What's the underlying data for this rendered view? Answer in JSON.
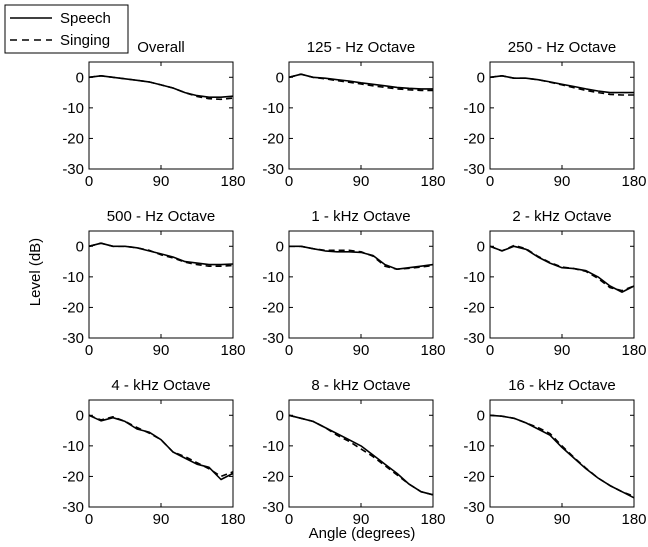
{
  "figure": {
    "xlabel": "Angle (degrees)",
    "ylabel": "Level (dB)",
    "legend": {
      "placement": "top-left",
      "entries": [
        {
          "label": "Speech",
          "style": "solid"
        },
        {
          "label": "Singing",
          "style": "dashed"
        }
      ]
    },
    "line_color": "#000000"
  },
  "chart_data": [
    {
      "type": "line",
      "title": "Overall",
      "xlim": [
        0,
        180
      ],
      "ylim": [
        -30,
        5
      ],
      "xticks": [
        0,
        90,
        180
      ],
      "yticks": [
        0,
        -10,
        -20,
        -30
      ],
      "x": [
        0,
        15,
        30,
        45,
        60,
        75,
        90,
        105,
        120,
        135,
        150,
        165,
        180
      ],
      "series": [
        {
          "name": "Speech",
          "values": [
            0,
            0.5,
            0,
            -0.5,
            -1,
            -1.5,
            -2.5,
            -3.5,
            -5,
            -6,
            -6.5,
            -6.5,
            -6.2
          ]
        },
        {
          "name": "Singing",
          "values": [
            0,
            0.5,
            0,
            -0.5,
            -1,
            -1.5,
            -2.5,
            -3.5,
            -5,
            -6.3,
            -7,
            -7.2,
            -6.8
          ]
        }
      ]
    },
    {
      "type": "line",
      "title": "125 - Hz  Octave",
      "xlim": [
        0,
        180
      ],
      "ylim": [
        -30,
        5
      ],
      "xticks": [
        0,
        90,
        180
      ],
      "yticks": [
        0,
        -10,
        -20,
        -30
      ],
      "x": [
        0,
        15,
        30,
        45,
        60,
        75,
        90,
        105,
        120,
        135,
        150,
        165,
        180
      ],
      "series": [
        {
          "name": "Speech",
          "values": [
            0,
            1,
            0,
            -0.3,
            -0.8,
            -1.2,
            -1.8,
            -2.3,
            -2.8,
            -3.3,
            -3.6,
            -3.8,
            -3.8
          ]
        },
        {
          "name": "Singing",
          "values": [
            0,
            1,
            0,
            -0.5,
            -1.1,
            -1.6,
            -2.2,
            -2.8,
            -3.3,
            -3.8,
            -4.1,
            -4.3,
            -4.3
          ]
        }
      ]
    },
    {
      "type": "line",
      "title": "250 - Hz  Octave",
      "xlim": [
        0,
        180
      ],
      "ylim": [
        -30,
        5
      ],
      "xticks": [
        0,
        90,
        180
      ],
      "yticks": [
        0,
        -10,
        -20,
        -30
      ],
      "x": [
        0,
        15,
        30,
        45,
        60,
        75,
        90,
        105,
        120,
        135,
        150,
        165,
        180
      ],
      "series": [
        {
          "name": "Speech",
          "values": [
            0,
            0.5,
            -0.3,
            -0.3,
            -0.8,
            -1.5,
            -2.3,
            -3,
            -3.8,
            -4.5,
            -5,
            -5,
            -5
          ]
        },
        {
          "name": "Singing",
          "values": [
            0,
            0.5,
            -0.3,
            -0.3,
            -0.8,
            -1.6,
            -2.5,
            -3.4,
            -4.3,
            -5,
            -5.6,
            -5.8,
            -5.8
          ]
        }
      ]
    },
    {
      "type": "line",
      "title": "500 - Hz  Octave",
      "xlim": [
        0,
        180
      ],
      "ylim": [
        -30,
        5
      ],
      "xticks": [
        0,
        90,
        180
      ],
      "yticks": [
        0,
        -10,
        -20,
        -30
      ],
      "x": [
        0,
        15,
        30,
        45,
        60,
        75,
        90,
        105,
        120,
        135,
        150,
        165,
        180
      ],
      "series": [
        {
          "name": "Speech",
          "values": [
            0,
            1,
            0,
            0,
            -0.5,
            -1.5,
            -2.5,
            -3.5,
            -5,
            -5.5,
            -6,
            -6,
            -5.8
          ]
        },
        {
          "name": "Singing",
          "values": [
            0,
            1,
            0,
            0,
            -0.5,
            -1.3,
            -2.8,
            -3.8,
            -5.2,
            -6,
            -6.5,
            -6.5,
            -6.3
          ]
        }
      ]
    },
    {
      "type": "line",
      "title": "1 - kHz  Octave",
      "xlim": [
        0,
        180
      ],
      "ylim": [
        -30,
        5
      ],
      "xticks": [
        0,
        90,
        180
      ],
      "yticks": [
        0,
        -10,
        -20,
        -30
      ],
      "x": [
        0,
        15,
        30,
        45,
        60,
        75,
        90,
        105,
        120,
        135,
        150,
        165,
        180
      ],
      "series": [
        {
          "name": "Speech",
          "values": [
            0,
            0,
            -0.8,
            -1.5,
            -1.8,
            -1.8,
            -2,
            -3,
            -6,
            -7.5,
            -7,
            -6.5,
            -6
          ]
        },
        {
          "name": "Singing",
          "values": [
            0,
            0,
            -0.8,
            -1.3,
            -1.3,
            -1.3,
            -1.8,
            -3.2,
            -6.5,
            -7.5,
            -7.2,
            -6.8,
            -6.3
          ]
        }
      ]
    },
    {
      "type": "line",
      "title": "2 - kHz  Octave",
      "xlim": [
        0,
        180
      ],
      "ylim": [
        -30,
        5
      ],
      "xticks": [
        0,
        90,
        180
      ],
      "yticks": [
        0,
        -10,
        -20,
        -30
      ],
      "x": [
        0,
        15,
        30,
        45,
        60,
        75,
        90,
        105,
        120,
        135,
        150,
        165,
        180
      ],
      "series": [
        {
          "name": "Speech",
          "values": [
            0,
            -1.5,
            0,
            -1,
            -3.5,
            -5.5,
            -7,
            -7.3,
            -8,
            -10,
            -13,
            -15,
            -13
          ]
        },
        {
          "name": "Singing",
          "values": [
            0,
            -1.5,
            0.3,
            -0.8,
            -3.3,
            -5.3,
            -6.8,
            -7.3,
            -8.2,
            -10.5,
            -13.5,
            -14.5,
            -13
          ]
        }
      ]
    },
    {
      "type": "line",
      "title": "4 - kHz  Octave",
      "xlim": [
        0,
        180
      ],
      "ylim": [
        -30,
        5
      ],
      "xticks": [
        0,
        90,
        180
      ],
      "yticks": [
        0,
        -10,
        -20,
        -30
      ],
      "x": [
        0,
        15,
        30,
        45,
        60,
        75,
        90,
        105,
        120,
        135,
        150,
        165,
        180
      ],
      "series": [
        {
          "name": "Speech",
          "values": [
            0,
            -1.8,
            -0.8,
            -2,
            -4.5,
            -5.5,
            -8,
            -12,
            -14,
            -16,
            -17,
            -21,
            -19
          ]
        },
        {
          "name": "Singing",
          "values": [
            0,
            -1.5,
            -0.5,
            -2,
            -4,
            -5.8,
            -8,
            -12,
            -13.5,
            -15.5,
            -17.5,
            -20,
            -18.5
          ]
        }
      ]
    },
    {
      "type": "line",
      "title": "8 - kHz  Octave",
      "xlim": [
        0,
        180
      ],
      "ylim": [
        -30,
        5
      ],
      "xticks": [
        0,
        90,
        180
      ],
      "yticks": [
        0,
        -10,
        -20,
        -30
      ],
      "x": [
        0,
        15,
        30,
        45,
        60,
        75,
        90,
        105,
        120,
        135,
        150,
        165,
        180
      ],
      "series": [
        {
          "name": "Speech",
          "values": [
            0,
            -1,
            -2,
            -4,
            -6,
            -8,
            -10,
            -13,
            -16,
            -19,
            -22.5,
            -25,
            -26
          ]
        },
        {
          "name": "Singing",
          "values": [
            0,
            -1,
            -2,
            -4,
            -6.5,
            -8.5,
            -11,
            -13.5,
            -16.5,
            -19.5,
            -22.5,
            -25,
            -26
          ]
        }
      ]
    },
    {
      "type": "line",
      "title": "16 - kHz  Octave",
      "xlim": [
        0,
        180
      ],
      "ylim": [
        -30,
        5
      ],
      "xticks": [
        0,
        90,
        180
      ],
      "yticks": [
        0,
        -10,
        -20,
        -30
      ],
      "x": [
        0,
        15,
        30,
        45,
        60,
        75,
        90,
        105,
        120,
        135,
        150,
        165,
        180
      ],
      "series": [
        {
          "name": "Speech",
          "values": [
            0,
            -0.3,
            -1,
            -2.5,
            -4.5,
            -6.5,
            -10.5,
            -14,
            -17.5,
            -20.5,
            -23,
            -25,
            -27
          ]
        },
        {
          "name": "Singing",
          "values": [
            0,
            -0.3,
            -1,
            -2.5,
            -4,
            -6,
            -10,
            -13.8,
            -17.3,
            -20.5,
            -23,
            -25,
            -26.5
          ]
        }
      ]
    }
  ]
}
